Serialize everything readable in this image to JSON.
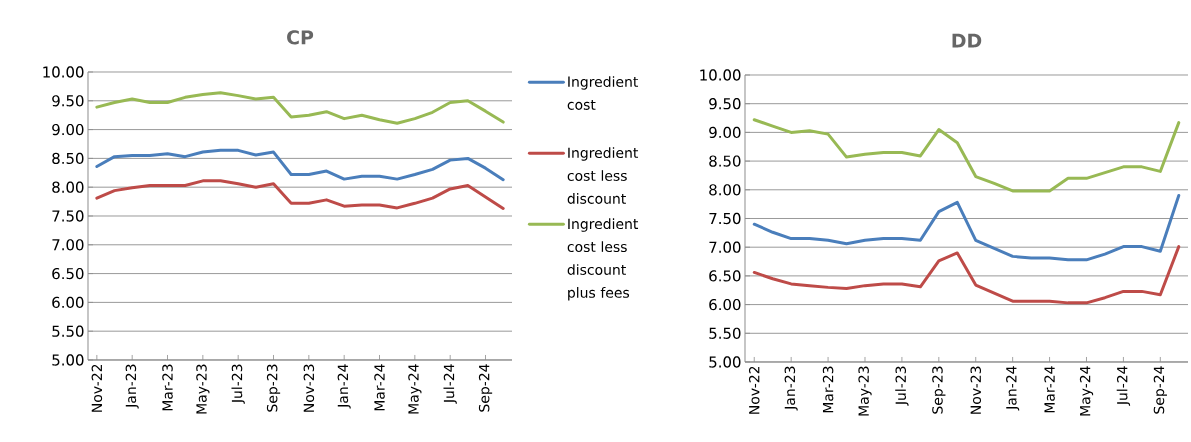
{
  "chart_data": [
    {
      "type": "line",
      "title": "CP",
      "categories": [
        "Nov-22",
        null,
        "Jan-23",
        null,
        "Mar-23",
        null,
        "May-23",
        null,
        "Jul-23",
        null,
        "Sep-23",
        null,
        "Nov-23",
        null,
        "Jan-24",
        null,
        "Mar-24",
        null,
        "May-24",
        null,
        "Jul-24",
        null,
        "Sep-24",
        null
      ],
      "series": [
        {
          "name": "Ingredient cost",
          "color": "#4a7ebb",
          "values": [
            8.36,
            8.53,
            8.55,
            8.55,
            8.58,
            8.53,
            8.61,
            8.64,
            8.64,
            8.56,
            8.61,
            8.22,
            8.22,
            8.28,
            8.14,
            8.19,
            8.19,
            8.14,
            8.22,
            8.31,
            8.47,
            8.5,
            8.33,
            8.13
          ]
        },
        {
          "name": "Ingredient cost less discount",
          "color": "#be4b48",
          "values": [
            7.81,
            7.94,
            7.99,
            8.03,
            8.03,
            8.03,
            8.11,
            8.11,
            8.06,
            8.0,
            8.06,
            7.72,
            7.72,
            7.78,
            7.67,
            7.69,
            7.69,
            7.64,
            7.72,
            7.81,
            7.97,
            8.03,
            7.83,
            7.63
          ]
        },
        {
          "name": "Ingredient cost less discount plus fees",
          "color": "#98b954",
          "values": [
            9.39,
            9.47,
            9.53,
            9.47,
            9.47,
            9.56,
            9.61,
            9.64,
            9.59,
            9.53,
            9.56,
            9.22,
            9.25,
            9.31,
            9.19,
            9.25,
            9.17,
            9.11,
            9.19,
            9.3,
            9.47,
            9.5,
            9.32,
            9.13
          ]
        }
      ],
      "ylim": [
        5,
        10
      ],
      "yticks": [
        {
          "value": 5,
          "label": "5.00"
        },
        {
          "value": 5.5,
          "label": "5.50"
        },
        {
          "value": 6,
          "label": "6.00"
        },
        {
          "value": 6.5,
          "label": "6.50"
        },
        {
          "value": 7,
          "label": "7.00"
        },
        {
          "value": 7.5,
          "label": "7.50"
        },
        {
          "value": 8,
          "label": "8.00"
        },
        {
          "value": 8.5,
          "label": "8.50"
        },
        {
          "value": 9,
          "label": "9.00"
        },
        {
          "value": 9.5,
          "label": "9.50"
        },
        {
          "value": 10,
          "label": "10.00"
        }
      ],
      "grid": "y",
      "legend": "right",
      "marker": "none",
      "line_style": "solid"
    },
    {
      "type": "line",
      "title": "DD",
      "categories": [
        "Nov-22",
        null,
        "Jan-23",
        null,
        "Mar-23",
        null,
        "May-23",
        null,
        "Jul-23",
        null,
        "Sep-23",
        null,
        "Nov-23",
        null,
        "Jan-24",
        null,
        "Mar-24",
        null,
        "May-24",
        null,
        "Jul-24",
        null,
        "Sep-24",
        null
      ],
      "series": [
        {
          "color": "#4a7ebb",
          "values": [
            7.4,
            7.26,
            7.15,
            7.15,
            7.12,
            7.06,
            7.12,
            7.15,
            7.15,
            7.12,
            7.62,
            7.78,
            7.12,
            6.98,
            6.84,
            6.81,
            6.81,
            6.78,
            6.78,
            6.88,
            7.01,
            7.01,
            6.93,
            7.9
          ]
        },
        {
          "color": "#be4b48",
          "values": [
            6.56,
            6.45,
            6.36,
            6.33,
            6.3,
            6.28,
            6.33,
            6.36,
            6.36,
            6.31,
            6.76,
            6.9,
            6.34,
            6.2,
            6.06,
            6.06,
            6.06,
            6.03,
            6.03,
            6.12,
            6.23,
            6.23,
            6.17,
            7.01
          ]
        },
        {
          "color": "#98b954",
          "values": [
            9.22,
            9.11,
            9.0,
            9.03,
            8.97,
            8.57,
            8.62,
            8.65,
            8.65,
            8.59,
            9.05,
            8.82,
            8.23,
            8.11,
            7.98,
            7.98,
            7.98,
            8.2,
            8.2,
            8.3,
            8.4,
            8.4,
            8.32,
            9.17
          ]
        }
      ],
      "ylim": [
        5,
        10
      ],
      "yticks": [
        {
          "value": 5,
          "label": "5.00"
        },
        {
          "value": 5.5,
          "label": "5.50"
        },
        {
          "value": 6,
          "label": "6.00"
        },
        {
          "value": 6.5,
          "label": "6.50"
        },
        {
          "value": 7,
          "label": "7.00"
        },
        {
          "value": 7.5,
          "label": "7.50"
        },
        {
          "value": 8,
          "label": "8.00"
        },
        {
          "value": 8.5,
          "label": "8.50"
        },
        {
          "value": 9,
          "label": "9.00"
        },
        {
          "value": 9.5,
          "label": "9.50"
        },
        {
          "value": 10,
          "label": "10.00"
        }
      ],
      "grid": "y",
      "marker": "none",
      "line_style": "solid"
    }
  ]
}
